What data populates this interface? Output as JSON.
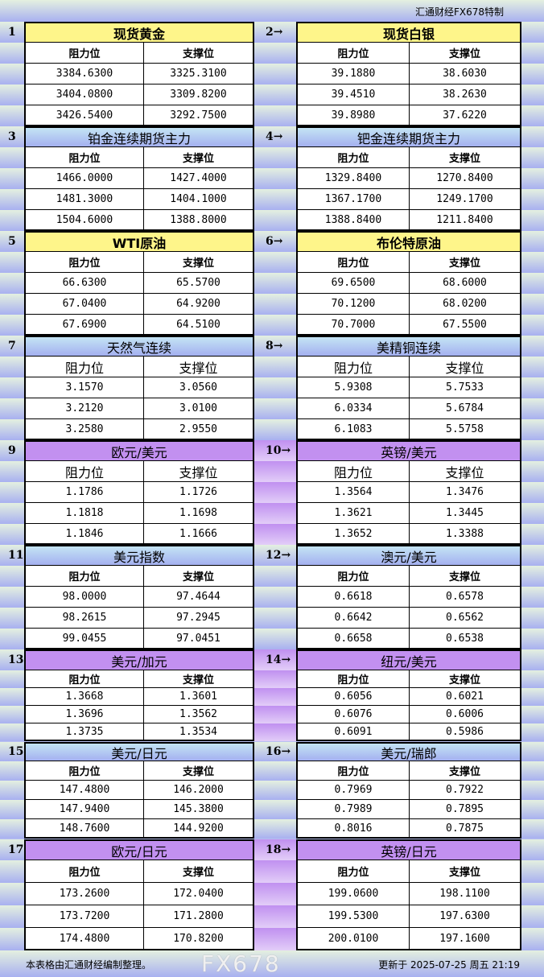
{
  "header": {
    "credit": "汇通财经FX678特制"
  },
  "columns": {
    "resistance": "阻力位",
    "support": "支撑位"
  },
  "blocks": [
    {
      "num": "1",
      "title": "现货黄金",
      "style": "yellow",
      "rows": [
        [
          "3384.6300",
          "3325.3100"
        ],
        [
          "3404.0800",
          "3309.8200"
        ],
        [
          "3426.5400",
          "3292.7500"
        ]
      ]
    },
    {
      "num": "2→",
      "title": "现货白银",
      "style": "yellow",
      "rows": [
        [
          "39.1880",
          "38.6030"
        ],
        [
          "39.4510",
          "38.2630"
        ],
        [
          "39.8980",
          "37.6220"
        ]
      ]
    },
    {
      "num": "3",
      "title": "铂金连续期货主力",
      "style": "blue",
      "rows": [
        [
          "1466.0000",
          "1427.4000"
        ],
        [
          "1481.3000",
          "1404.1000"
        ],
        [
          "1504.6000",
          "1388.8000"
        ]
      ]
    },
    {
      "num": "4→",
      "title": "钯金连续期货主力",
      "style": "blue",
      "rows": [
        [
          "1329.8400",
          "1270.8400"
        ],
        [
          "1367.1700",
          "1249.1700"
        ],
        [
          "1388.8400",
          "1211.8400"
        ]
      ]
    },
    {
      "num": "5",
      "title": "WTI原油",
      "style": "yellow",
      "rows": [
        [
          "66.6300",
          "65.5700"
        ],
        [
          "67.0400",
          "64.9200"
        ],
        [
          "67.6900",
          "64.5100"
        ]
      ]
    },
    {
      "num": "6→",
      "title": "布伦特原油",
      "style": "yellow",
      "rows": [
        [
          "69.6500",
          "68.6000"
        ],
        [
          "70.1200",
          "68.0200"
        ],
        [
          "70.7000",
          "67.5500"
        ]
      ]
    },
    {
      "num": "7",
      "title": "天然气连续",
      "style": "blue",
      "rows": [
        [
          "3.1570",
          "3.0560"
        ],
        [
          "3.2120",
          "3.0100"
        ],
        [
          "3.2580",
          "2.9550"
        ]
      ]
    },
    {
      "num": "8→",
      "title": "美精铜连续",
      "style": "blue",
      "rows": [
        [
          "5.9308",
          "5.7533"
        ],
        [
          "6.0334",
          "5.6784"
        ],
        [
          "6.1083",
          "5.5758"
        ]
      ]
    },
    {
      "num": "9",
      "title": "欧元/美元",
      "style": "purple",
      "rows": [
        [
          "1.1786",
          "1.1726"
        ],
        [
          "1.1818",
          "1.1698"
        ],
        [
          "1.1846",
          "1.1666"
        ]
      ]
    },
    {
      "num": "10→",
      "title": "英镑/美元",
      "style": "purple",
      "rows": [
        [
          "1.3564",
          "1.3476"
        ],
        [
          "1.3621",
          "1.3445"
        ],
        [
          "1.3652",
          "1.3388"
        ]
      ]
    },
    {
      "num": "11",
      "title": "美元指数",
      "style": "blue",
      "rows": [
        [
          "98.0000",
          "97.4644"
        ],
        [
          "98.2615",
          "97.2945"
        ],
        [
          "99.0455",
          "97.0451"
        ]
      ]
    },
    {
      "num": "12→",
      "title": "澳元/美元",
      "style": "blue",
      "rows": [
        [
          "0.6618",
          "0.6578"
        ],
        [
          "0.6642",
          "0.6562"
        ],
        [
          "0.6658",
          "0.6538"
        ]
      ]
    },
    {
      "num": "13",
      "title": "美元/加元",
      "style": "purple",
      "rows": [
        [
          "1.3668",
          "1.3601"
        ],
        [
          "1.3696",
          "1.3562"
        ],
        [
          "1.3735",
          "1.3534"
        ]
      ]
    },
    {
      "num": "14→",
      "title": "纽元/美元",
      "style": "purple",
      "rows": [
        [
          "0.6056",
          "0.6021"
        ],
        [
          "0.6076",
          "0.6006"
        ],
        [
          "0.6091",
          "0.5986"
        ]
      ]
    },
    {
      "num": "15",
      "title": "美元/日元",
      "style": "blue",
      "rows": [
        [
          "147.4800",
          "146.2000"
        ],
        [
          "147.9400",
          "145.3800"
        ],
        [
          "148.7600",
          "144.9200"
        ]
      ]
    },
    {
      "num": "16→",
      "title": "美元/瑞郎",
      "style": "blue",
      "rows": [
        [
          "0.7969",
          "0.7922"
        ],
        [
          "0.7989",
          "0.7895"
        ],
        [
          "0.8016",
          "0.7875"
        ]
      ]
    },
    {
      "num": "17",
      "title": "欧元/日元",
      "style": "purple",
      "rows": [
        [
          "173.2600",
          "172.0400"
        ],
        [
          "173.7200",
          "171.2800"
        ],
        [
          "174.4800",
          "170.8200"
        ]
      ]
    },
    {
      "num": "18→",
      "title": "英镑/日元",
      "style": "purple",
      "rows": [
        [
          "199.0600",
          "198.1100"
        ],
        [
          "199.5300",
          "197.6300"
        ],
        [
          "200.0100",
          "197.1600"
        ]
      ]
    }
  ],
  "footer": {
    "note": "本表格由汇通财经编制整理。",
    "updated": "更新于 2025-07-25 周五 21:19"
  },
  "watermark": "FX678"
}
